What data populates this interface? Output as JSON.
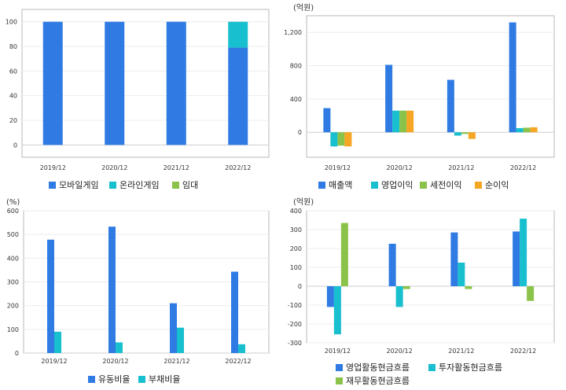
{
  "chart_data": [
    {
      "id": "revenue-mix",
      "type": "bar",
      "stacked": true,
      "unit": "",
      "categories": [
        "2019/12",
        "2020/12",
        "2021/12",
        "2022/12"
      ],
      "series": [
        {
          "name": "모바일게임",
          "color": "#2f7be3",
          "values": [
            100,
            100,
            100,
            79
          ]
        },
        {
          "name": "온라인게임",
          "color": "#17bfcf",
          "values": [
            0,
            0,
            0,
            21
          ]
        },
        {
          "name": "임대",
          "color": "#8bc34a",
          "values": [
            0,
            0,
            0,
            0
          ]
        }
      ],
      "ylim": [
        -10,
        110
      ],
      "yticks": [
        0,
        20,
        40,
        60,
        80,
        100
      ],
      "ytick_labels": [
        "0",
        "20",
        "40",
        "60",
        "80",
        "100"
      ],
      "grid": true,
      "legend": "bottom"
    },
    {
      "id": "earnings",
      "type": "bar",
      "stacked": false,
      "unit": "(억원)",
      "categories": [
        "2019/12",
        "2020/12",
        "2021/12",
        "2022/12"
      ],
      "series": [
        {
          "name": "매출액",
          "color": "#2f7be3",
          "values": [
            290,
            810,
            630,
            1320
          ]
        },
        {
          "name": "영업이익",
          "color": "#17bfcf",
          "values": [
            -170,
            260,
            -40,
            50
          ]
        },
        {
          "name": "세전이익",
          "color": "#8bc34a",
          "values": [
            -160,
            260,
            -20,
            55
          ]
        },
        {
          "name": "순이익",
          "color": "#f5a623",
          "values": [
            -170,
            260,
            -80,
            60
          ]
        }
      ],
      "ylim": [
        -300,
        1400
      ],
      "yticks": [
        0,
        400,
        800,
        1200
      ],
      "ytick_labels": [
        "0",
        "400",
        "800",
        "1,200"
      ],
      "grid": true,
      "legend": "bottom"
    },
    {
      "id": "stability",
      "type": "bar",
      "stacked": false,
      "unit": "(%)",
      "categories": [
        "2019/12",
        "2020/12",
        "2021/12",
        "2022/12"
      ],
      "series": [
        {
          "name": "유동비율",
          "color": "#2f7be3",
          "values": [
            478,
            533,
            210,
            343
          ]
        },
        {
          "name": "부채비율",
          "color": "#17bfcf",
          "values": [
            90,
            45,
            107,
            37
          ]
        }
      ],
      "ylim": [
        0,
        600
      ],
      "yticks": [
        0,
        100,
        200,
        300,
        400,
        500,
        600
      ],
      "ytick_labels": [
        "0",
        "100",
        "200",
        "300",
        "400",
        "500",
        "600"
      ],
      "grid": true,
      "legend": "bottom"
    },
    {
      "id": "cash-flow",
      "type": "bar",
      "stacked": false,
      "unit": "(억원)",
      "categories": [
        "2019/12",
        "2020/12",
        "2021/12",
        "2022/12"
      ],
      "series": [
        {
          "name": "영업활동현금흐름",
          "color": "#2f7be3",
          "values": [
            -110,
            225,
            285,
            290
          ]
        },
        {
          "name": "투자활동현금흐름",
          "color": "#17bfcf",
          "values": [
            -255,
            -110,
            125,
            358
          ]
        },
        {
          "name": "재무활동현금흐름",
          "color": "#8bc34a",
          "values": [
            335,
            -15,
            -15,
            -78
          ]
        }
      ],
      "ylim": [
        -300,
        400
      ],
      "yticks": [
        -300,
        -200,
        -100,
        0,
        100,
        200,
        300,
        400
      ],
      "ytick_labels": [
        "-300",
        "-200",
        "-100",
        "0",
        "100",
        "200",
        "300",
        "400"
      ],
      "grid": true,
      "legend": "bottom"
    }
  ]
}
